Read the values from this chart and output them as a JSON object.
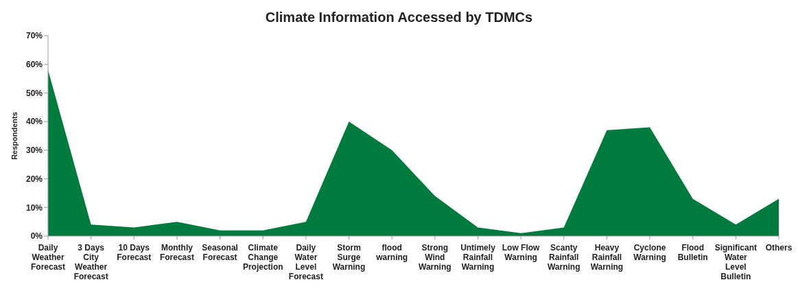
{
  "chart_data": {
    "type": "area",
    "title": "Climate Information Accessed by TDMCs",
    "ylabel": "Respondents",
    "categories": [
      "Daily Weather Forecast",
      "3 Days City Weather Forecast",
      "10 Days Forecast",
      "Monthly Forecast",
      "Seasonal Forecast",
      "Climate Change Projection",
      "Daily Water Level Forecast",
      "Storm Surge Warning",
      "flood warning",
      "Strong Wind Warning",
      "Untimely Rainfall Warning",
      "Low Flow Warning",
      "Scanty Rainfall Warning",
      "Heavy Rainfall Warning",
      "Cyclone Warning",
      "Flood Bulletin",
      "Significant Water Level Bulletin",
      "Others"
    ],
    "values": [
      58,
      4,
      3,
      5,
      2,
      2,
      5,
      40,
      30,
      14,
      3,
      1,
      3,
      37,
      38,
      13,
      4,
      13
    ],
    "color": "#007a3d",
    "ylim": [
      0,
      70
    ],
    "yticks": [
      {
        "value": 0,
        "label": "0%"
      },
      {
        "value": 10,
        "label": "10%"
      },
      {
        "value": 20,
        "label": "20%"
      },
      {
        "value": 30,
        "label": "30%"
      },
      {
        "value": 40,
        "label": "40%"
      },
      {
        "value": 50,
        "label": "50%"
      },
      {
        "value": 60,
        "label": "60%"
      },
      {
        "value": 70,
        "label": "70%"
      }
    ],
    "grid": false,
    "legend": false
  }
}
